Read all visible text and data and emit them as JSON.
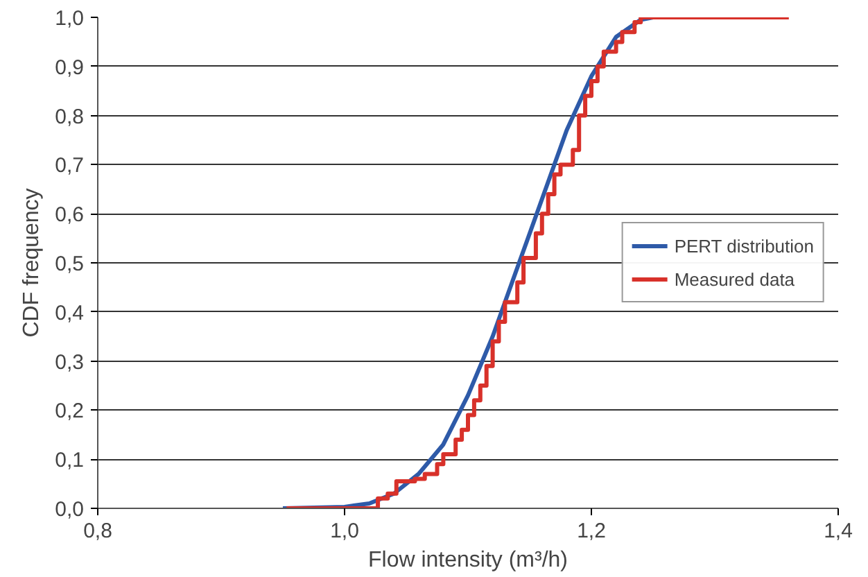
{
  "chart_data": {
    "type": "line",
    "xlabel": "Flow intensity (m³/h)",
    "ylabel": "CDF frequency",
    "xlim": [
      0.8,
      1.4
    ],
    "ylim": [
      0,
      1
    ],
    "xticks": [
      {
        "value": 0.8,
        "label": "0,8"
      },
      {
        "value": 1.0,
        "label": "1,0"
      },
      {
        "value": 1.2,
        "label": "1,2"
      },
      {
        "value": 1.4,
        "label": "1,4"
      }
    ],
    "yticks": [
      {
        "value": 0,
        "label": "0,0"
      },
      {
        "value": 0.1,
        "label": "0,1"
      },
      {
        "value": 0.2,
        "label": "0,2"
      },
      {
        "value": 0.3,
        "label": "0,3"
      },
      {
        "value": 0.4,
        "label": "0,4"
      },
      {
        "value": 0.5,
        "label": "0,5"
      },
      {
        "value": 0.6,
        "label": "0,6"
      },
      {
        "value": 0.7,
        "label": "0,7"
      },
      {
        "value": 0.8,
        "label": "0,8"
      },
      {
        "value": 0.9,
        "label": "0,9"
      },
      {
        "value": 1.0,
        "label": "1,0"
      }
    ],
    "grid": "y",
    "legend": "right",
    "marker": "none",
    "series": [
      {
        "name": "PERT distribution",
        "color": "#2e5aa8",
        "x": [
          0.95,
          1.0,
          1.02,
          1.04,
          1.06,
          1.08,
          1.1,
          1.12,
          1.14,
          1.16,
          1.18,
          1.2,
          1.22,
          1.24,
          1.25
        ],
        "values": [
          0,
          0.003,
          0.01,
          0.03,
          0.07,
          0.13,
          0.23,
          0.35,
          0.49,
          0.63,
          0.77,
          0.88,
          0.96,
          0.995,
          1.0
        ]
      },
      {
        "name": "Measured data",
        "color": "#d8312a",
        "type": "step",
        "x": [
          0.953,
          1.027,
          1.035,
          1.042,
          1.057,
          1.065,
          1.075,
          1.08,
          1.09,
          1.095,
          1.1,
          1.105,
          1.11,
          1.115,
          1.12,
          1.125,
          1.13,
          1.14,
          1.145,
          1.155,
          1.16,
          1.165,
          1.17,
          1.175,
          1.185,
          1.19,
          1.195,
          1.2,
          1.205,
          1.21,
          1.22,
          1.225,
          1.235,
          1.24,
          1.36
        ],
        "values": [
          0,
          0.02,
          0.03,
          0.055,
          0.06,
          0.07,
          0.09,
          0.11,
          0.14,
          0.16,
          0.19,
          0.22,
          0.25,
          0.29,
          0.34,
          0.38,
          0.42,
          0.46,
          0.51,
          0.56,
          0.6,
          0.64,
          0.68,
          0.7,
          0.73,
          0.8,
          0.84,
          0.87,
          0.9,
          0.93,
          0.95,
          0.97,
          0.99,
          1.0,
          1.0
        ]
      }
    ]
  }
}
